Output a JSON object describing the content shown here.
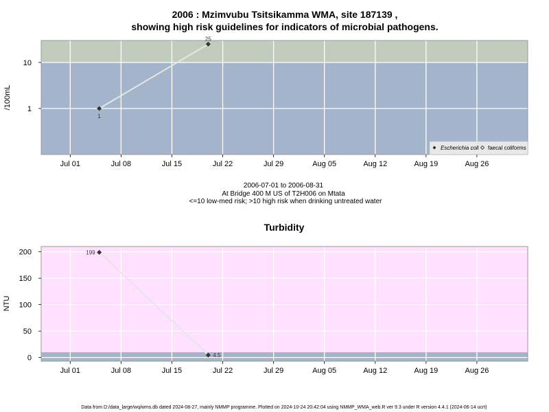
{
  "top": {
    "title_line1": "2006 : Mzimvubu Tsitsikamma WMA, site 187139 ,",
    "title_line2": "showing high risk guidelines for indicators of microbial pathogens.",
    "subtitle_line1": "2006-07-01 to 2006-08-31",
    "subtitle_line2": "At Bridge 400 M US of T2H006 on Mtata",
    "subtitle_line3": "<=10 low-med risk; >10 high risk when drinking untreated water",
    "legend": [
      "Escherichia coli",
      "faecal coliforms"
    ]
  },
  "bottom": {
    "title": "Turbidity"
  },
  "footer": "Data from D:/data_large/wq/wms.db dated 2024-08-27, mainly NMMP programme. Plotted on 2024-10-24 20:42:04 using NMMP_WMA_web.R ver 9.3 under R version 4.4.1 (2024-06-14 ucrt)",
  "colors": {
    "low_band": "#a3b4cb",
    "high_band": "#c1ccbd",
    "turbidity_bg": "#ffe0ff",
    "turbidity_band": "#a3b4cb",
    "line": "#e6e6e6",
    "point": "#333333"
  },
  "chart_data": [
    {
      "type": "line",
      "title": "2006 : Mzimvubu Tsitsikamma WMA, site 187139 , showing high risk guidelines for indicators of microbial pathogens.",
      "ylabel": "/100mL",
      "y_scale": "log",
      "ylim": [
        0.1,
        30
      ],
      "xlim": [
        "2006-06-27",
        "2006-09-02"
      ],
      "x_ticks": [
        {
          "date": "2006-07-01",
          "label": "Jul 01"
        },
        {
          "date": "2006-07-08",
          "label": "Jul 08"
        },
        {
          "date": "2006-07-15",
          "label": "Jul 15"
        },
        {
          "date": "2006-07-22",
          "label": "Jul 22"
        },
        {
          "date": "2006-07-29",
          "label": "Jul 29"
        },
        {
          "date": "2006-08-05",
          "label": "Aug 05"
        },
        {
          "date": "2006-08-12",
          "label": "Aug 12"
        },
        {
          "date": "2006-08-19",
          "label": "Aug 19"
        },
        {
          "date": "2006-08-26",
          "label": "Aug 26"
        }
      ],
      "y_ticks": [
        1,
        10
      ],
      "threshold": 10,
      "series": [
        {
          "name": "Escherichia coli",
          "x": [
            "2006-07-05",
            "2006-07-20"
          ],
          "values": [
            1,
            25
          ],
          "labels": [
            "1",
            "25"
          ]
        }
      ],
      "legend_position": "bottom-right",
      "grid": true
    },
    {
      "type": "line",
      "title": "Turbidity",
      "ylabel": "NTU",
      "ylim": [
        -7,
        210
      ],
      "xlim": [
        "2006-06-27",
        "2006-09-02"
      ],
      "x_ticks": [
        {
          "date": "2006-07-01",
          "label": "Jul 01"
        },
        {
          "date": "2006-07-08",
          "label": "Jul 08"
        },
        {
          "date": "2006-07-15",
          "label": "Jul 15"
        },
        {
          "date": "2006-07-22",
          "label": "Jul 22"
        },
        {
          "date": "2006-07-29",
          "label": "Jul 29"
        },
        {
          "date": "2006-08-05",
          "label": "Aug 05"
        },
        {
          "date": "2006-08-12",
          "label": "Aug 12"
        },
        {
          "date": "2006-08-19",
          "label": "Aug 19"
        },
        {
          "date": "2006-08-26",
          "label": "Aug 26"
        }
      ],
      "y_ticks": [
        0,
        50,
        100,
        150,
        200
      ],
      "band_top": 10,
      "series": [
        {
          "x": [
            "2006-07-05",
            "2006-07-20"
          ],
          "values": [
            199,
            4.5
          ],
          "labels": [
            "199",
            "4.5"
          ]
        }
      ],
      "grid": true
    }
  ]
}
